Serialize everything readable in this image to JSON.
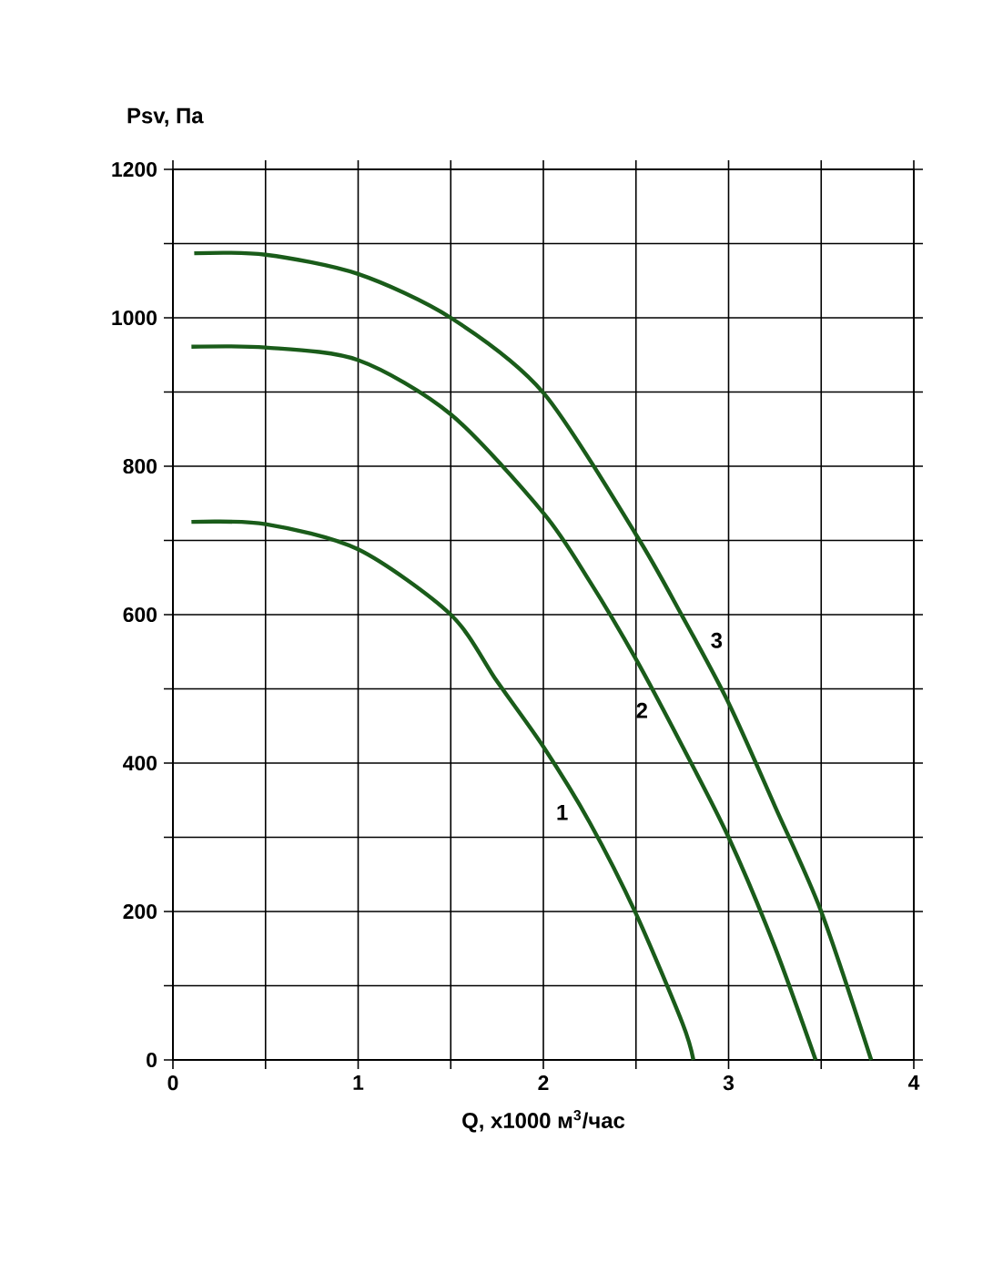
{
  "chart_data": {
    "type": "line",
    "xlabel": "Q, x1000 м$^{3}$/час",
    "ylabel": "Psv, Па",
    "xlim": [
      0,
      4
    ],
    "ylim": [
      0,
      1200
    ],
    "xticks": [
      0,
      {
        "value": 0.5,
        "label": null
      },
      1,
      {
        "value": 1.5,
        "label": null
      },
      2,
      {
        "value": 2.5,
        "label": null
      },
      3,
      {
        "value": 3.5,
        "label": null
      },
      4
    ],
    "yticks": [
      0,
      {
        "value": 100,
        "label": null
      },
      200,
      {
        "value": 300,
        "label": null
      },
      400,
      {
        "value": 500,
        "label": null
      },
      600,
      {
        "value": 700,
        "label": null
      },
      800,
      {
        "value": 900,
        "label": null
      },
      1000,
      {
        "value": 1100,
        "label": null
      },
      1200
    ],
    "grid": true,
    "marker": "none",
    "line_style": "solid",
    "series": [
      {
        "name": "1",
        "color": "#1a5c1a",
        "x": [
          0.1,
          0.5,
          1,
          1.5,
          1.75,
          2,
          2.25,
          2.5,
          2.75,
          2.81
        ],
        "values": [
          725,
          722,
          688,
          600,
          510,
          422,
          320,
          197,
          50,
          0
        ]
      },
      {
        "name": "2",
        "color": "#1a5c1a",
        "x": [
          0.1,
          0.5,
          1,
          1.5,
          2,
          2.25,
          2.5,
          2.75,
          3,
          3.25,
          3.47
        ],
        "values": [
          961,
          960,
          943,
          870,
          737,
          645,
          540,
          423,
          300,
          152,
          0
        ]
      },
      {
        "name": "3",
        "color": "#1a5c1a",
        "x": [
          0.115,
          0.5,
          1,
          1.5,
          2,
          2.5,
          2.75,
          3,
          3.25,
          3.5,
          3.77
        ],
        "values": [
          1087,
          1085,
          1059,
          1000,
          899,
          708,
          598,
          481,
          342,
          200,
          0
        ]
      }
    ]
  }
}
